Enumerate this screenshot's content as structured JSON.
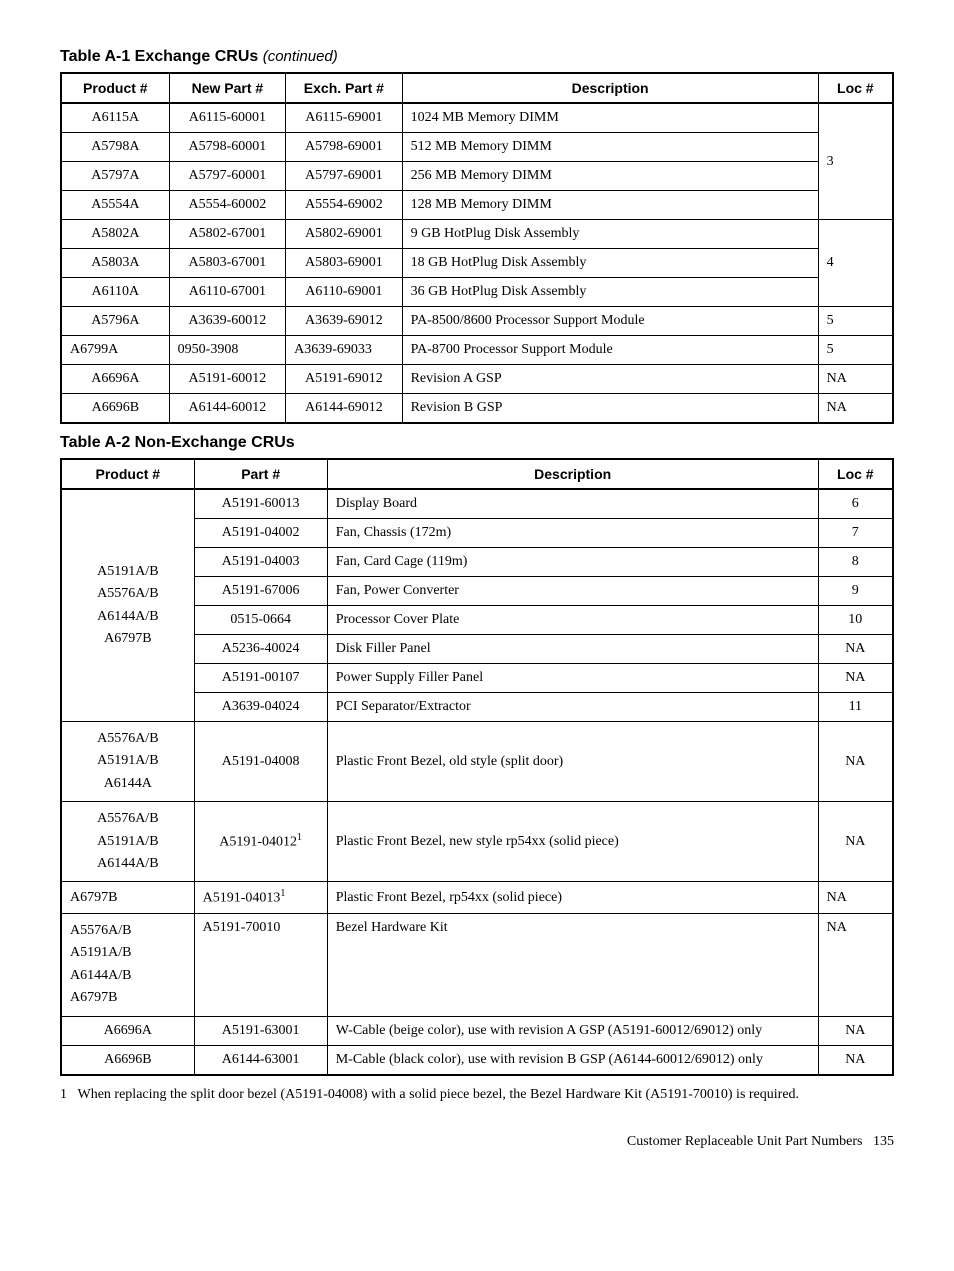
{
  "caption1_prefix": "Table A-1 Exchange CRUs ",
  "caption1_cont": "(continued)",
  "caption2": "Table A-2 Non-Exchange CRUs",
  "t1_headers": {
    "c1": "Product #",
    "c2": "New Part #",
    "c3": "Exch. Part #",
    "c4": "Description",
    "c5": "Loc #"
  },
  "t1": {
    "r1": {
      "p": "A6115A",
      "n": "A6115-60001",
      "e": "A6115-69001",
      "d": "1024 MB Memory DIMM"
    },
    "r2": {
      "p": "A5798A",
      "n": "A5798-60001",
      "e": "A5798-69001",
      "d": "512 MB Memory DIMM"
    },
    "r3": {
      "p": "A5797A",
      "n": "A5797-60001",
      "e": "A5797-69001",
      "d": "256 MB Memory DIMM"
    },
    "r4": {
      "p": "A5554A",
      "n": "A5554-60002",
      "e": "A5554-69002",
      "d": "128 MB Memory DIMM"
    },
    "loc_mem": "3",
    "r5": {
      "p": "A5802A",
      "n": "A5802-67001",
      "e": "A5802-69001",
      "d": "9 GB HotPlug Disk Assembly"
    },
    "r6": {
      "p": "A5803A",
      "n": "A5803-67001",
      "e": "A5803-69001",
      "d": "18 GB HotPlug Disk Assembly"
    },
    "r7": {
      "p": "A6110A",
      "n": "A6110-67001",
      "e": "A6110-69001",
      "d": "36 GB HotPlug Disk Assembly"
    },
    "loc_disk": "4",
    "r8": {
      "p": "A5796A",
      "n": "A3639-60012",
      "e": "A3639-69012",
      "d": "PA-8500/8600 Processor Support Module",
      "l": "5"
    },
    "r9": {
      "p": "A6799A",
      "n": "0950-3908",
      "e": "A3639-69033",
      "d": "PA-8700 Processor Support Module",
      "l": "5"
    },
    "r10": {
      "p": "A6696A",
      "n": "A5191-60012",
      "e": "A5191-69012",
      "d": "Revision A GSP",
      "l": "NA"
    },
    "r11": {
      "p": "A6696B",
      "n": "A6144-60012",
      "e": "A6144-69012",
      "d": "Revision B GSP",
      "l": "NA"
    }
  },
  "t2_headers": {
    "c1": "Product #",
    "c2": "Part #",
    "c3": "Description",
    "c4": "Loc #"
  },
  "t2": {
    "group1_products": {
      "a": "A5191A/B",
      "b": "A5576A/B",
      "c": "A6144A/B",
      "d": "A6797B"
    },
    "g1r1": {
      "part": "A5191-60013",
      "desc": "Display Board",
      "loc": "6"
    },
    "g1r2": {
      "part": "A5191-04002",
      "desc": "Fan, Chassis (172m)",
      "loc": "7"
    },
    "g1r3": {
      "part": "A5191-04003",
      "desc": "Fan, Card Cage (119m)",
      "loc": "8"
    },
    "g1r4": {
      "part": "A5191-67006",
      "desc": "Fan, Power Converter",
      "loc": "9"
    },
    "g1r5": {
      "part": "0515-0664",
      "desc": "Processor Cover Plate",
      "loc": "10"
    },
    "g1r6": {
      "part": "A5236-40024",
      "desc": "Disk Filler Panel",
      "loc": "NA"
    },
    "g1r7": {
      "part": "A5191-00107",
      "desc": "Power Supply Filler Panel",
      "loc": "NA"
    },
    "g1r8": {
      "part": "A3639-04024",
      "desc": "PCI Separator/Extractor",
      "loc": "11"
    },
    "r2": {
      "prod": {
        "a": "A5576A/B",
        "b": "A5191A/B",
        "c": "A6144A"
      },
      "part": "A5191-04008",
      "desc": "Plastic Front Bezel, old style (split door)",
      "loc": "NA"
    },
    "r3": {
      "prod": {
        "a": "A5576A/B",
        "b": "A5191A/B",
        "c": "A6144A/B"
      },
      "part": "A5191-04012",
      "sup": "1",
      "desc": "Plastic Front Bezel, new style rp54xx (solid piece)",
      "loc": "NA"
    },
    "r4": {
      "prod": "A6797B",
      "part": "A5191-04013",
      "sup": "1",
      "desc": "Plastic Front Bezel, rp54xx (solid piece)",
      "loc": "NA"
    },
    "r5": {
      "prod": {
        "a": "A5576A/B",
        "b": "A5191A/B",
        "c": "A6144A/B",
        "d": "A6797B"
      },
      "part": "A5191-70010",
      "desc": "Bezel Hardware Kit",
      "loc": "NA"
    },
    "r6": {
      "prod": "A6696A",
      "part": "A5191-63001",
      "desc": "W-Cable (beige color), use with revision A GSP (A5191-60012/69012) only",
      "loc": "NA"
    },
    "r7": {
      "prod": "A6696B",
      "part": "A6144-63001",
      "desc": "M-Cable (black color), use with revision B GSP (A6144-60012/69012) only",
      "loc": "NA"
    }
  },
  "footnote_num": "1",
  "footnote_text": "When replacing the split door bezel (A5191-04008) with a solid piece bezel, the Bezel Hardware Kit (A5191-70010) is required.",
  "footer_text": "Customer Replaceable Unit Part Numbers",
  "footer_page": "135"
}
